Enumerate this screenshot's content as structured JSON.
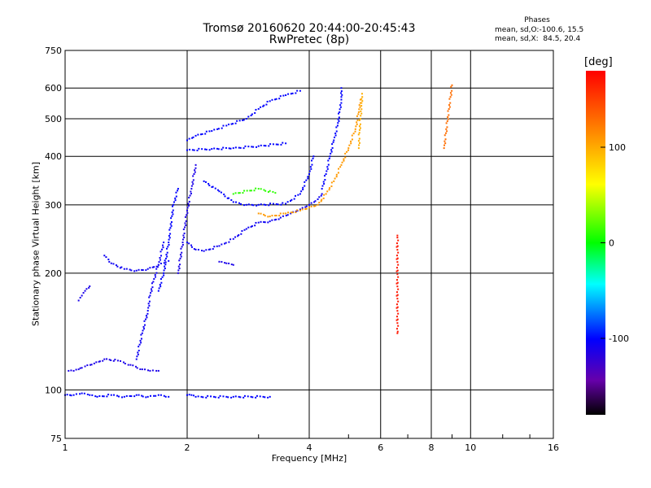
{
  "header": {
    "title_line1": "Tromsø 20160620 20:44:00-20:45:43",
    "title_line2": "RwPretec (8p)",
    "phases_title": "Phases",
    "stat_o": "mean, sd,O:-100.6, 15.5",
    "stat_x": "mean, sd,X:  84.5, 20.4"
  },
  "chart_data": {
    "type": "scatter",
    "title": "Tromsø 20160620 20:44:00-20:45:43",
    "subtitle": "RwPretec (8p)",
    "xlabel": "Frequency [MHz]",
    "ylabel": "Stationary phase Virtual Height [km]",
    "x_scale": "log",
    "y_scale": "log",
    "xlim": [
      1,
      16
    ],
    "ylim": [
      75,
      750
    ],
    "x_ticks": [
      1,
      2,
      4,
      6,
      8,
      10,
      16
    ],
    "y_ticks": [
      75,
      100,
      200,
      300,
      400,
      500,
      600,
      750
    ],
    "grid": true,
    "colorbar": {
      "label": "[deg]",
      "range": [
        -180,
        180
      ],
      "ticks": [
        100,
        0,
        -100
      ]
    },
    "traces": [
      {
        "phase": -110,
        "x": [
          1.02,
          1.05,
          1.08,
          1.1
        ],
        "y": [
          112,
          112,
          113,
          114
        ]
      },
      {
        "phase": -110,
        "x": [
          1.12,
          1.18,
          1.25,
          1.35,
          1.45,
          1.55,
          1.62,
          1.7
        ],
        "y": [
          115,
          117,
          120,
          119,
          116,
          113,
          112,
          112
        ]
      },
      {
        "phase": -100,
        "x": [
          1.0,
          1.05,
          1.1,
          1.15,
          1.2,
          1.3,
          1.4,
          1.5,
          1.6,
          1.7,
          1.8
        ],
        "y": [
          97,
          97,
          98,
          97,
          96,
          97,
          96,
          97,
          96,
          97,
          96
        ]
      },
      {
        "phase": -100,
        "x": [
          2.0,
          2.05,
          2.1,
          2.6,
          3.2
        ],
        "y": [
          97,
          97,
          96,
          96,
          96
        ]
      },
      {
        "phase": -110,
        "x": [
          1.08,
          1.1,
          1.12,
          1.15
        ],
        "y": [
          170,
          175,
          180,
          185
        ]
      },
      {
        "phase": -105,
        "x": [
          1.25,
          1.3,
          1.4,
          1.5,
          1.6,
          1.7,
          1.8
        ],
        "y": [
          222,
          212,
          205,
          203,
          205,
          210,
          215
        ]
      },
      {
        "phase": -105,
        "x": [
          1.5,
          1.55,
          1.6,
          1.62,
          1.65,
          1.7,
          1.75
        ],
        "y": [
          120,
          140,
          160,
          175,
          190,
          210,
          240
        ]
      },
      {
        "phase": -100,
        "x": [
          1.7,
          1.75,
          1.8,
          1.85,
          1.9
        ],
        "y": [
          180,
          200,
          240,
          300,
          330
        ]
      },
      {
        "phase": -110,
        "x": [
          1.9,
          1.95,
          2.0,
          2.05,
          2.1
        ],
        "y": [
          200,
          240,
          290,
          330,
          380
        ]
      },
      {
        "phase": -105,
        "x": [
          2.0,
          2.1,
          2.2,
          2.4,
          2.6,
          2.8,
          3.0,
          3.2,
          3.4,
          3.6,
          3.8,
          4.0,
          4.2,
          4.3
        ],
        "y": [
          240,
          230,
          228,
          235,
          245,
          260,
          270,
          272,
          278,
          285,
          292,
          300,
          310,
          320
        ]
      },
      {
        "phase": -100,
        "x": [
          4.3,
          4.4,
          4.5,
          4.6,
          4.7,
          4.75,
          4.8,
          4.8
        ],
        "y": [
          330,
          360,
          400,
          440,
          480,
          520,
          560,
          600
        ]
      },
      {
        "phase": -100,
        "x": [
          2.0,
          2.1,
          2.3,
          2.5,
          2.8,
          3.0,
          3.2,
          3.5,
          3.8
        ],
        "y": [
          440,
          452,
          465,
          480,
          500,
          530,
          555,
          575,
          590
        ]
      },
      {
        "phase": -100,
        "x": [
          2.0,
          2.3,
          2.6,
          3.0,
          3.5
        ],
        "y": [
          415,
          418,
          420,
          425,
          432
        ]
      },
      {
        "phase": -100,
        "x": [
          2.2,
          2.4,
          2.6,
          2.8,
          3.0,
          3.5,
          3.8,
          4.0,
          4.1
        ],
        "y": [
          345,
          325,
          305,
          300,
          300,
          302,
          320,
          360,
          400
        ]
      },
      {
        "phase": -110,
        "x": [
          2.4,
          2.5,
          2.6
        ],
        "y": [
          214,
          212,
          210
        ]
      },
      {
        "phase": 110,
        "x": [
          3.0,
          3.2,
          3.5,
          3.8,
          4.0,
          4.2,
          4.4,
          4.6,
          4.8,
          5.0,
          5.2,
          5.3,
          5.35
        ],
        "y": [
          285,
          280,
          285,
          290,
          295,
          300,
          320,
          345,
          380,
          420,
          470,
          520,
          560
        ]
      },
      {
        "phase": 100,
        "x": [
          5.3,
          5.32,
          5.35,
          5.38,
          5.4
        ],
        "y": [
          420,
          460,
          500,
          540,
          580
        ]
      },
      {
        "phase": 10,
        "x": [
          2.6,
          3.0,
          3.3
        ],
        "y": [
          320,
          330,
          322
        ]
      },
      {
        "phase": 130,
        "x": [
          8.6,
          9.0
        ],
        "y": [
          420,
          610
        ]
      },
      {
        "phase": 170,
        "x": [
          6.6,
          6.6
        ],
        "y": [
          250,
          140
        ]
      }
    ]
  }
}
